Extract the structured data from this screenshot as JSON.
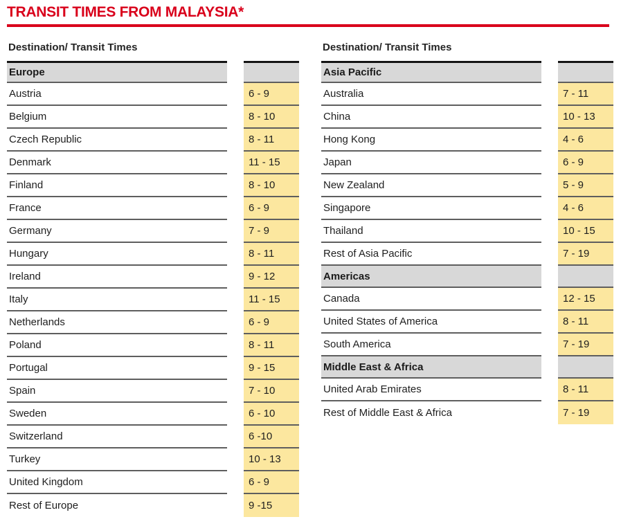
{
  "title": "TRANSIT TIMES FROM MALAYSIA*",
  "colors": {
    "accent_red": "#d9001b",
    "value_cell_yellow": "#fce79f",
    "section_gray": "#d8d8d8",
    "row_line_gray": "#5e5e5e",
    "table_top_black": "#141414"
  },
  "tables": [
    {
      "column_header": "Destination/ Transit Times",
      "rows": [
        {
          "type": "section",
          "label": "Europe",
          "value": ""
        },
        {
          "type": "data",
          "label": "Austria",
          "value": "6 - 9"
        },
        {
          "type": "data",
          "label": "Belgium",
          "value": "8 - 10"
        },
        {
          "type": "data",
          "label": "Czech Republic",
          "value": "8 - 11"
        },
        {
          "type": "data",
          "label": "Denmark",
          "value": "11 - 15"
        },
        {
          "type": "data",
          "label": "Finland",
          "value": "8 - 10"
        },
        {
          "type": "data",
          "label": "France",
          "value": "6 - 9"
        },
        {
          "type": "data",
          "label": "Germany",
          "value": "7 - 9"
        },
        {
          "type": "data",
          "label": "Hungary",
          "value": "8 - 11"
        },
        {
          "type": "data",
          "label": "Ireland",
          "value": "9 - 12"
        },
        {
          "type": "data",
          "label": "Italy",
          "value": "11 - 15"
        },
        {
          "type": "data",
          "label": "Netherlands",
          "value": "6 - 9"
        },
        {
          "type": "data",
          "label": "Poland",
          "value": "8 - 11"
        },
        {
          "type": "data",
          "label": "Portugal",
          "value": "9 - 15"
        },
        {
          "type": "data",
          "label": "Spain",
          "value": "7 - 10"
        },
        {
          "type": "data",
          "label": "Sweden",
          "value": "6 - 10"
        },
        {
          "type": "data",
          "label": "Switzerland",
          "value": "6 -10"
        },
        {
          "type": "data",
          "label": "Turkey",
          "value": "10 - 13"
        },
        {
          "type": "data",
          "label": "United Kingdom",
          "value": "6 - 9"
        },
        {
          "type": "data",
          "label": "Rest of Europe",
          "value": "9 -15"
        }
      ]
    },
    {
      "column_header": "Destination/ Transit Times",
      "rows": [
        {
          "type": "section",
          "label": "Asia Pacific",
          "value": ""
        },
        {
          "type": "data",
          "label": "Australia",
          "value": "7 - 11"
        },
        {
          "type": "data",
          "label": "China",
          "value": "10 - 13"
        },
        {
          "type": "data",
          "label": "Hong Kong",
          "value": "4 - 6"
        },
        {
          "type": "data",
          "label": "Japan",
          "value": "6 - 9"
        },
        {
          "type": "data",
          "label": "New Zealand",
          "value": "5 - 9"
        },
        {
          "type": "data",
          "label": "Singapore",
          "value": "4 - 6"
        },
        {
          "type": "data",
          "label": "Thailand",
          "value": "10 - 15"
        },
        {
          "type": "data",
          "label": "Rest of Asia Pacific",
          "value": "7 - 19"
        },
        {
          "type": "section",
          "label": "Americas",
          "value": ""
        },
        {
          "type": "data",
          "label": "Canada",
          "value": "12 - 15"
        },
        {
          "type": "data",
          "label": "United States of America",
          "value": "8 - 11"
        },
        {
          "type": "data",
          "label": "South America",
          "value": "7 - 19"
        },
        {
          "type": "section",
          "label": "Middle East & Africa",
          "value": ""
        },
        {
          "type": "data",
          "label": "United Arab Emirates",
          "value": "8 - 11"
        },
        {
          "type": "data",
          "label": "Rest of Middle East & Africa",
          "value": "7 - 19"
        }
      ]
    }
  ]
}
